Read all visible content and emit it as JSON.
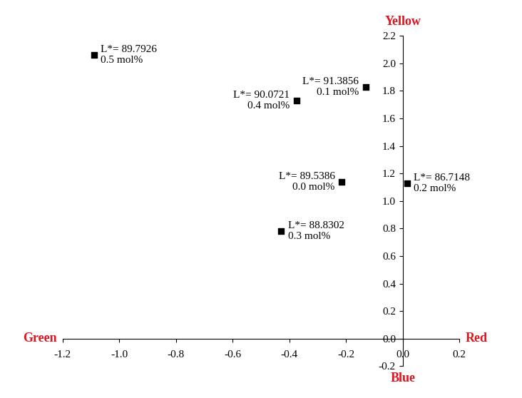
{
  "chart_data": {
    "type": "scatter",
    "x": [
      -1.09,
      -0.375,
      -0.13,
      -0.215,
      0.015,
      -0.43
    ],
    "values": [
      2.06,
      1.73,
      1.83,
      1.14,
      1.13,
      0.78
    ],
    "point_labels": [
      "L*= 89.7926\n0.5 mol%",
      "L*= 90.0721\n0.4 mol%",
      "L*= 91.3856\n0.1 mol%",
      "L*= 89.5386\n0.0 mol%",
      "L*= 86.7148\n0.2 mol%",
      "L*= 88.8302\n0.3 mol%"
    ],
    "color": "#000000",
    "marker": "s",
    "xlim": [
      -1.2,
      0.2
    ],
    "xticks": [
      -1.2,
      -1.0,
      -0.8,
      -0.6,
      -0.4,
      -0.2,
      0.0,
      0.2
    ],
    "ylim": [
      -0.2,
      2.2
    ],
    "yticks": [
      -0.2,
      0.0,
      0.2,
      0.4,
      0.6,
      0.8,
      1.0,
      1.2,
      1.4,
      1.6,
      1.8,
      2.0,
      2.2
    ],
    "axis_labels": {
      "left": "Green",
      "right": "Red",
      "top": "Yellow",
      "bottom": "Blue"
    }
  }
}
